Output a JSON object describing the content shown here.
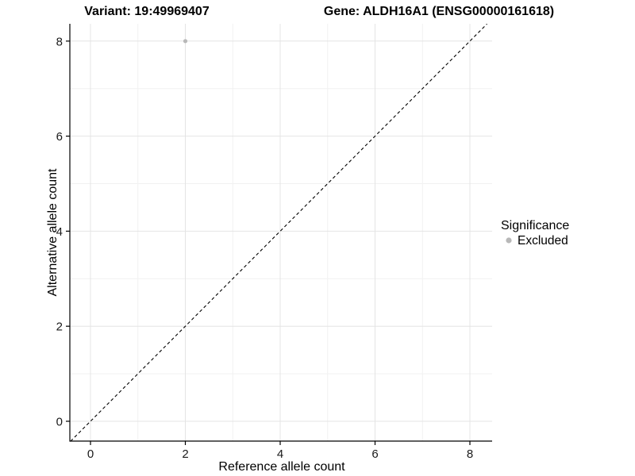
{
  "header": {
    "variant_title": "Variant: 19:49969407",
    "gene_title": "Gene: ALDH16A1 (ENSG00000161618)"
  },
  "legend": {
    "title": "Significance",
    "items": [
      {
        "label": "Excluded",
        "color": "#b8b8b8"
      }
    ]
  },
  "chart_data": {
    "type": "scatter",
    "title": "Variant: 19:49969407    Gene: ALDH16A1 (ENSG00000161618)",
    "xlabel": "Reference allele count",
    "ylabel": "Alternative allele count",
    "xlim": [
      -0.45,
      8.47
    ],
    "ylim": [
      -0.42,
      8.36
    ],
    "xticks": [
      0,
      2,
      4,
      6,
      8
    ],
    "yticks": [
      0,
      2,
      4,
      6,
      8
    ],
    "x_minor_ticks": [
      1,
      3,
      5,
      7
    ],
    "y_minor_ticks": [
      1,
      3,
      5,
      7
    ],
    "grid": true,
    "legend_position": "right",
    "series": [
      {
        "name": "Excluded",
        "color": "#b8b8b8",
        "points": [
          {
            "x": 2,
            "y": 8
          }
        ]
      }
    ],
    "reference_line": {
      "kind": "identity",
      "slope": 1,
      "intercept": 0,
      "dashed": true,
      "color": "#000000"
    }
  },
  "colors": {
    "background": "#ffffff",
    "panel_background": "#ffffff",
    "grid_major": "#e4e4e4",
    "grid_minor": "#f1f1f1",
    "axis_line": "#000000",
    "tick_mark": "#000000",
    "point": "#b8b8b8",
    "reference_line": "#000000"
  }
}
